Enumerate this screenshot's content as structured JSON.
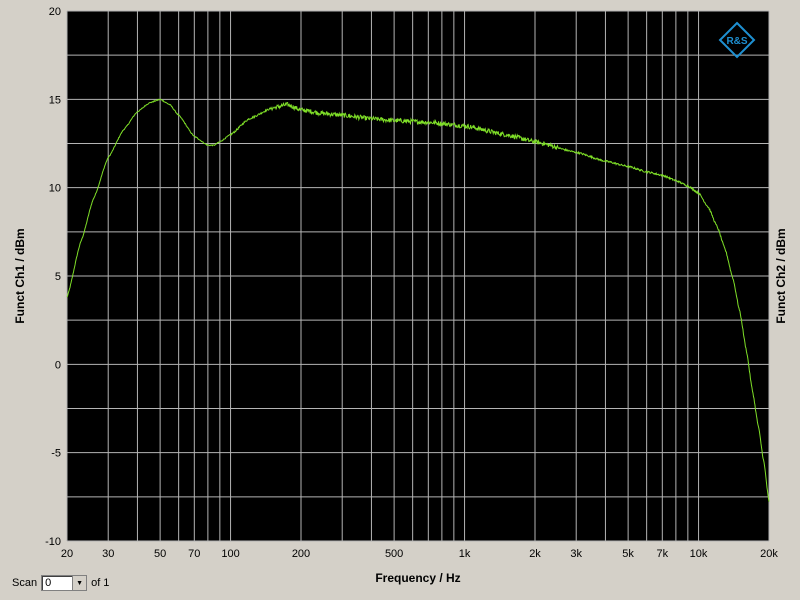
{
  "chart_data": {
    "type": "line",
    "xlabel": "Frequency / Hz",
    "ylabel": "Funct Ch1 / dBm",
    "ylabel_right": "Funct Ch2 / dBm",
    "x_scale": "log",
    "xlim": [
      20,
      20000
    ],
    "ylim": [
      -10,
      20
    ],
    "grid": true,
    "x_ticks": [
      {
        "value": 20,
        "label": "20"
      },
      {
        "value": 30,
        "label": "30"
      },
      {
        "value": 50,
        "label": "50"
      },
      {
        "value": 70,
        "label": "70"
      },
      {
        "value": 100,
        "label": "100"
      },
      {
        "value": 200,
        "label": "200"
      },
      {
        "value": 500,
        "label": "500"
      },
      {
        "value": 1000,
        "label": "1k"
      },
      {
        "value": 2000,
        "label": "2k"
      },
      {
        "value": 3000,
        "label": "3k"
      },
      {
        "value": 5000,
        "label": "5k"
      },
      {
        "value": 7000,
        "label": "7k"
      },
      {
        "value": 10000,
        "label": "10k"
      },
      {
        "value": 20000,
        "label": "20k"
      }
    ],
    "y_ticks": [
      {
        "value": 20,
        "label": "20"
      },
      {
        "value": 15,
        "label": "15"
      },
      {
        "value": 10,
        "label": "10"
      },
      {
        "value": 5,
        "label": "5"
      },
      {
        "value": 0,
        "label": "0"
      },
      {
        "value": -5,
        "label": "-5"
      },
      {
        "value": -10,
        "label": "-10"
      }
    ],
    "series": [
      {
        "color": "#7fdf28",
        "x": [
          20,
          23,
          26,
          30,
          35,
          40,
          45,
          50,
          55,
          60,
          70,
          80,
          85,
          90,
          100,
          120,
          150,
          175,
          200,
          250,
          300,
          400,
          500,
          700,
          1000,
          1500,
          2000,
          3000,
          4000,
          5000,
          6000,
          7000,
          8000,
          9000,
          10000,
          11000,
          12000,
          13000,
          14000,
          15000,
          16000,
          17000,
          18000,
          19000,
          20000
        ],
        "y": [
          3.8,
          7.0,
          9.4,
          11.7,
          13.3,
          14.3,
          14.8,
          15.0,
          14.7,
          14.1,
          12.9,
          12.4,
          12.4,
          12.6,
          13.0,
          13.9,
          14.5,
          14.7,
          14.4,
          14.2,
          14.1,
          13.9,
          13.8,
          13.7,
          13.5,
          13.0,
          12.6,
          12.0,
          11.5,
          11.2,
          10.9,
          10.7,
          10.4,
          10.1,
          9.7,
          8.9,
          7.8,
          6.5,
          4.9,
          3.0,
          0.8,
          -1.5,
          -3.5,
          -5.5,
          -7.8
        ]
      }
    ],
    "noise_amp": 0.13
  },
  "scan": {
    "label": "Scan",
    "value": "0",
    "of_label": "of 1"
  },
  "colors": {
    "background": "#d4d0c8",
    "plot_background": "#000000",
    "grid": "#b4b4b4",
    "trace": "#7fdf28",
    "logo": "#1e90d2"
  },
  "logo": {
    "text": "R&S"
  }
}
